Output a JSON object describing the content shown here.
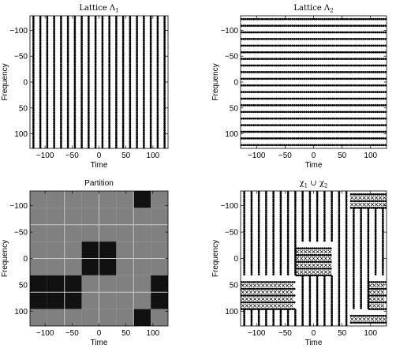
{
  "chart_data": [
    {
      "type": "scatter",
      "title": "Lattice Λ",
      "title_sub": "1",
      "xlabel": "Time",
      "ylabel": "Frequency",
      "xlim": [
        -128,
        128
      ],
      "ylim": [
        -128,
        128
      ],
      "y_inverted": true,
      "xticks": [
        -100,
        -50,
        0,
        50,
        100
      ],
      "yticks": [
        -100,
        -50,
        0,
        50,
        100
      ],
      "lattice": {
        "x_step": 12.8,
        "x_start": -121.6,
        "y_step": 3.55,
        "y_start": -126
      },
      "marker": "dot"
    },
    {
      "type": "scatter",
      "title": "Lattice Λ",
      "title_sub": "2",
      "xlabel": "Time",
      "ylabel": "Frequency",
      "xlim": [
        -128,
        128
      ],
      "ylim": [
        -128,
        128
      ],
      "y_inverted": true,
      "xticks": [
        -100,
        -50,
        0,
        50,
        100
      ],
      "yticks": [
        -100,
        -50,
        0,
        50,
        100
      ],
      "lattice": {
        "x_step": 3.55,
        "x_start": -126,
        "y_step": 12.8,
        "y_start": -121.6
      },
      "marker": "dot"
    },
    {
      "type": "heatmap",
      "title": "Partition",
      "xlabel": "Time",
      "ylabel": "Frequency",
      "xlim": [
        -128,
        128
      ],
      "ylim": [
        -128,
        128
      ],
      "y_inverted": true,
      "xticks": [
        -100,
        -50,
        0,
        50,
        100
      ],
      "yticks": [
        -100,
        -50,
        0,
        50,
        100
      ],
      "x_edges": [
        -128,
        -96,
        -64,
        -32,
        0,
        32,
        64,
        96,
        128
      ],
      "y_edges": [
        -128,
        -96,
        -64,
        -32,
        0,
        32,
        64,
        96,
        128
      ],
      "cells": [
        [
          0,
          0,
          0,
          0,
          0,
          0,
          1,
          0
        ],
        [
          0,
          0,
          0,
          0,
          0,
          0,
          0,
          0
        ],
        [
          0,
          0,
          0,
          0,
          0,
          0,
          0,
          0
        ],
        [
          0,
          0,
          0,
          1,
          1,
          0,
          0,
          0
        ],
        [
          0,
          0,
          0,
          1,
          1,
          0,
          0,
          0
        ],
        [
          1,
          1,
          1,
          0,
          0,
          0,
          0,
          1
        ],
        [
          1,
          1,
          1,
          0,
          0,
          0,
          0,
          1
        ],
        [
          0,
          0,
          0,
          0,
          0,
          0,
          1,
          0
        ]
      ],
      "colors": {
        "0": "#808080",
        "1": "#111111",
        "grid": "#c8c8c8"
      }
    },
    {
      "type": "scatter",
      "title": "χ",
      "title_parts": [
        "1",
        " ∪ χ",
        "2"
      ],
      "xlabel": "Time",
      "ylabel": "Frequency",
      "xlim": [
        -128,
        128
      ],
      "ylim": [
        -128,
        128
      ],
      "y_inverted": true,
      "xticks": [
        -100,
        -50,
        0,
        50,
        100
      ],
      "yticks": [
        -100,
        -50,
        0,
        50,
        100
      ],
      "regions_lattice2": [
        {
          "x": [
            64,
            128
          ],
          "y": [
            -128,
            -96
          ]
        },
        {
          "x": [
            -32,
            32
          ],
          "y": [
            -32,
            32
          ]
        },
        {
          "x": [
            -128,
            -32
          ],
          "y": [
            32,
            96
          ]
        },
        {
          "x": [
            96,
            128
          ],
          "y": [
            32,
            96
          ]
        },
        {
          "x": [
            64,
            128
          ],
          "y": [
            96,
            128
          ]
        }
      ],
      "markers": {
        "lattice1": "dot",
        "lattice2": "x"
      }
    }
  ]
}
